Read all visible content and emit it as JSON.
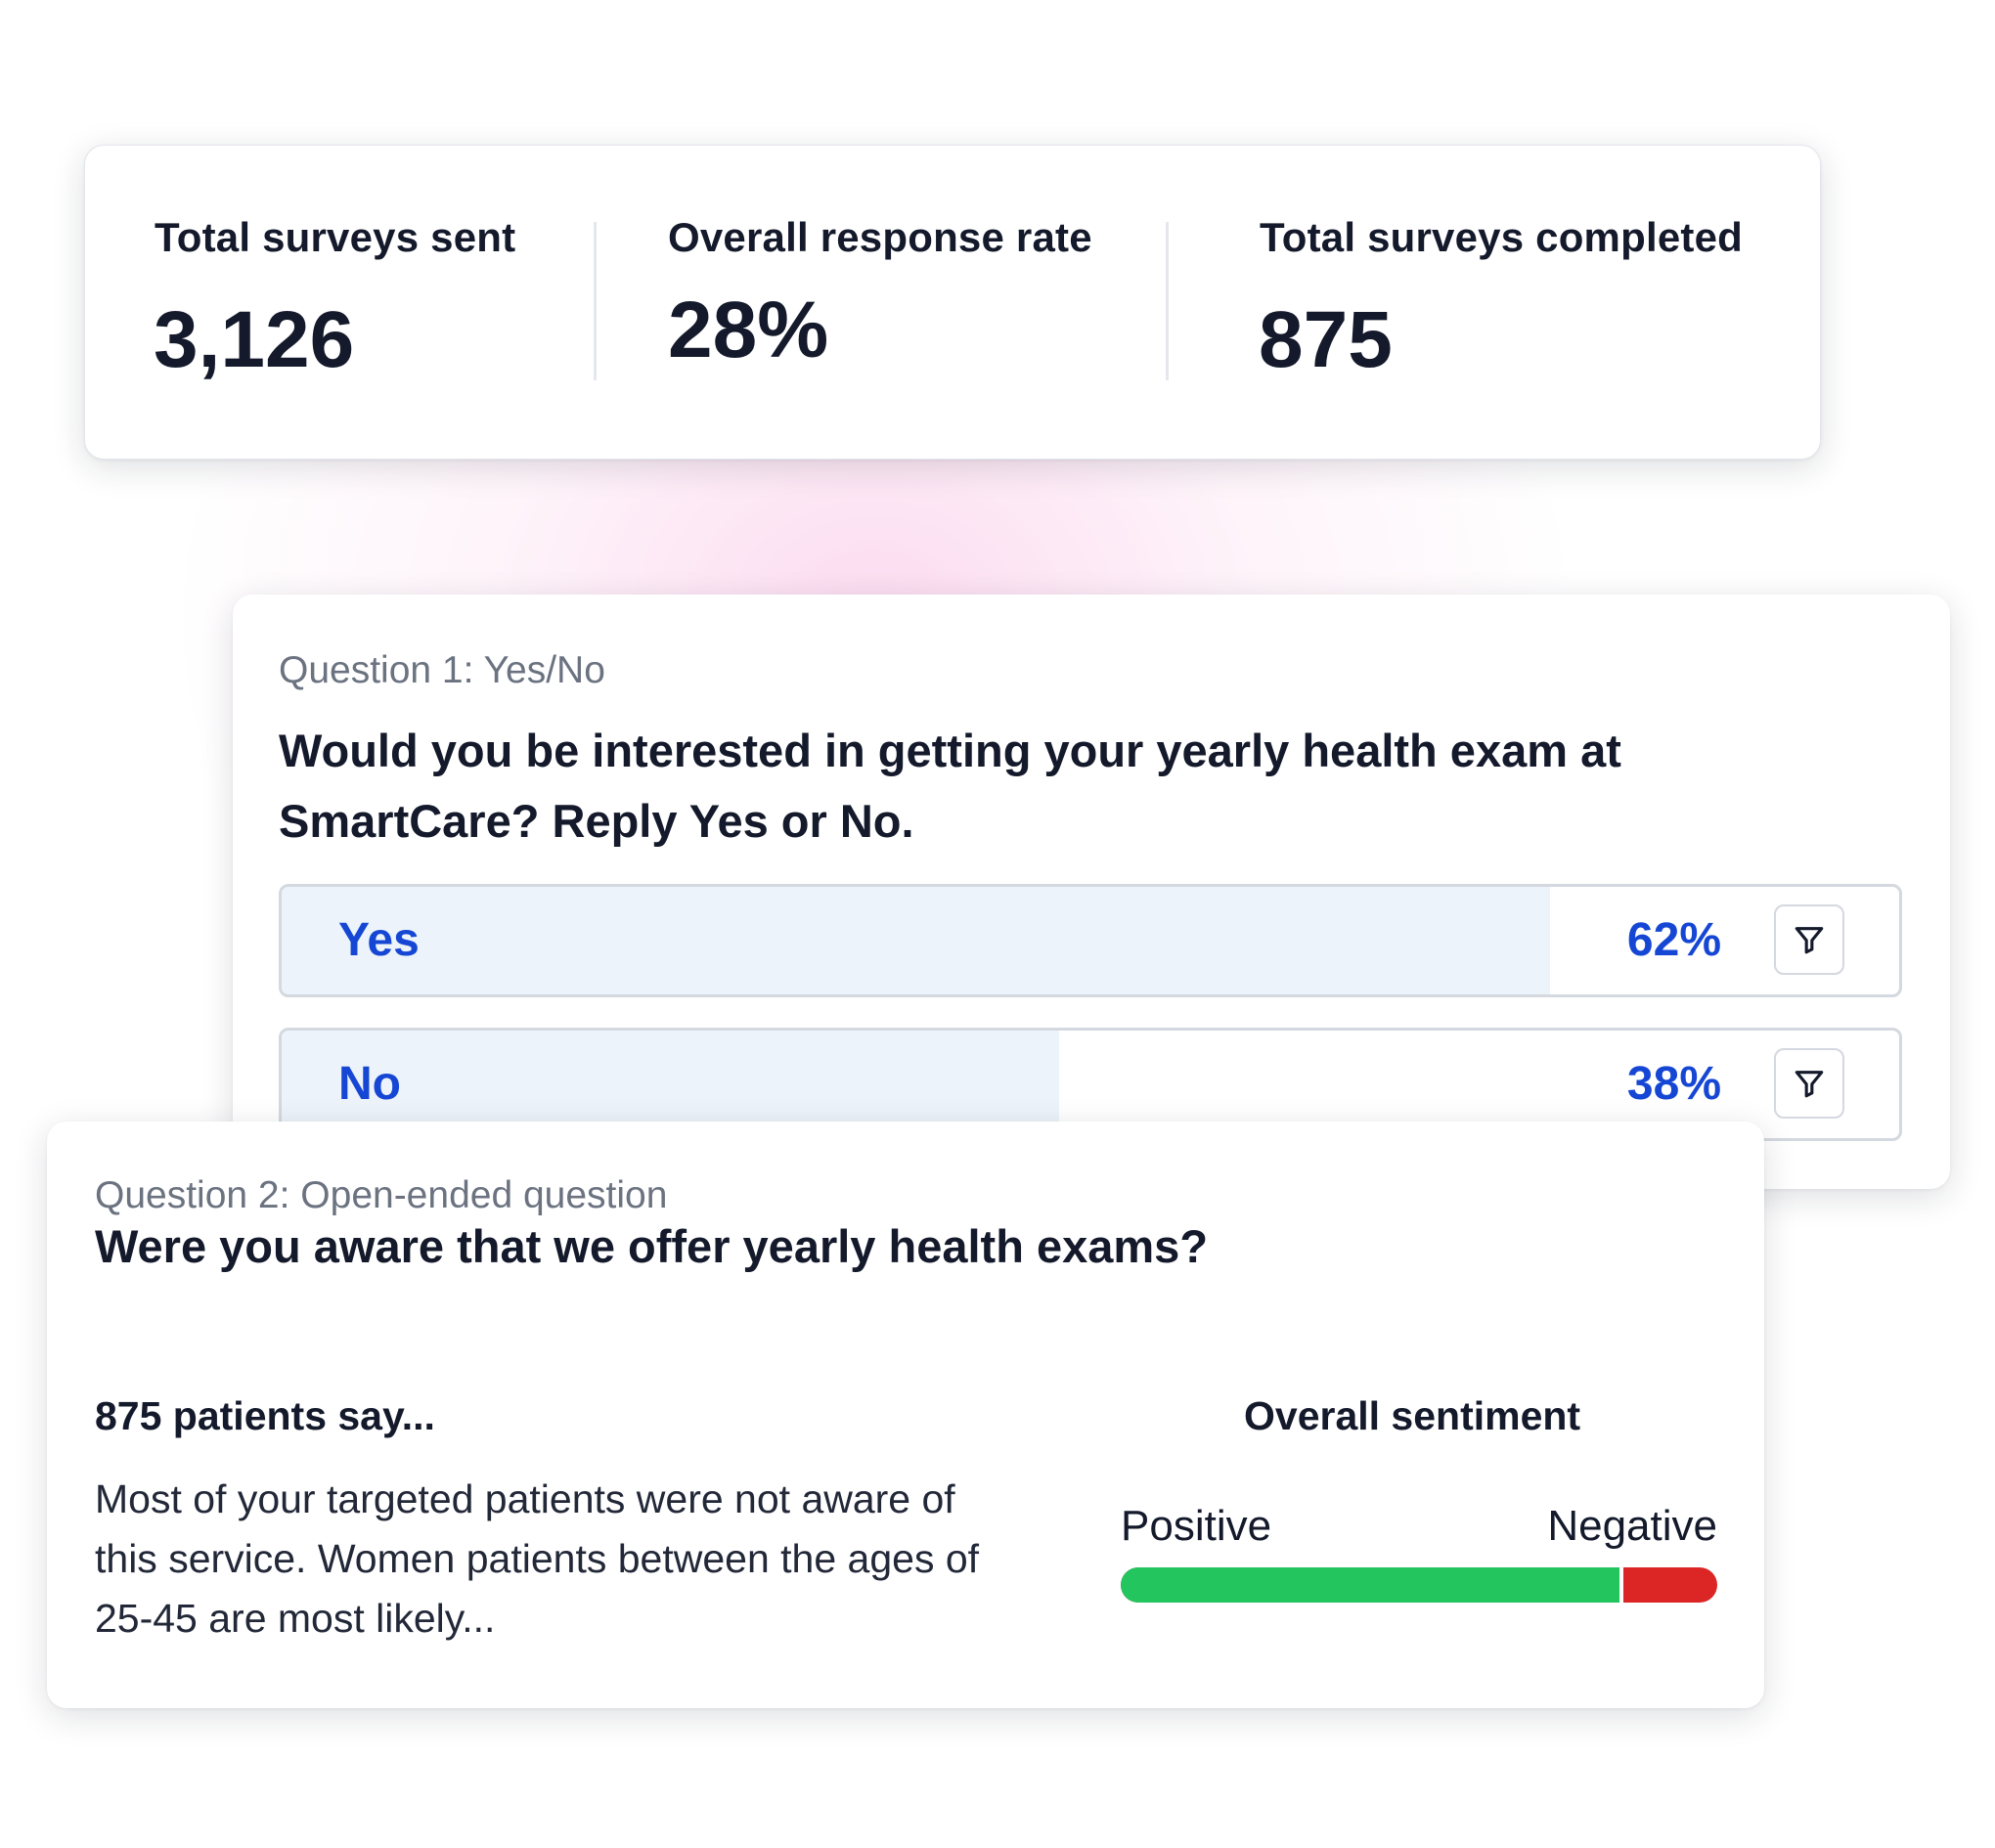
{
  "stats": [
    {
      "label": "Total surveys sent",
      "value": "3,126"
    },
    {
      "label": "Overall response rate",
      "value": "28%"
    },
    {
      "label": "Total surveys completed",
      "value": "875"
    }
  ],
  "question1": {
    "eyebrow": "Question 1: Yes/No",
    "title": "Would you be interested in getting your yearly health exam at SmartCare? Reply Yes or No.",
    "answers": [
      {
        "label": "Yes",
        "percent_text": "62%",
        "share": 0.62,
        "filter_icon": "filter-icon"
      },
      {
        "label": "No",
        "percent_text": "38%",
        "share": 0.38,
        "filter_icon": "filter-icon"
      }
    ]
  },
  "question2": {
    "eyebrow": "Question 2: Open-ended question",
    "title": "Were you aware that we offer yearly health exams?",
    "patients_heading": "875 patients say...",
    "summary": "Most of your targeted patients were not aware of this service. Women patients between the ages of 25-45 are most likely...",
    "sentiment": {
      "heading": "Overall sentiment",
      "positive_label": "Positive",
      "negative_label": "Negative",
      "positive_share": 0.84
    }
  },
  "colors": {
    "text": "#141a2b",
    "muted": "#6b7280",
    "accent_blue": "#1647d4",
    "answer_fill": "#edf3fa",
    "positive": "#22c55e",
    "negative": "#dc2626"
  }
}
